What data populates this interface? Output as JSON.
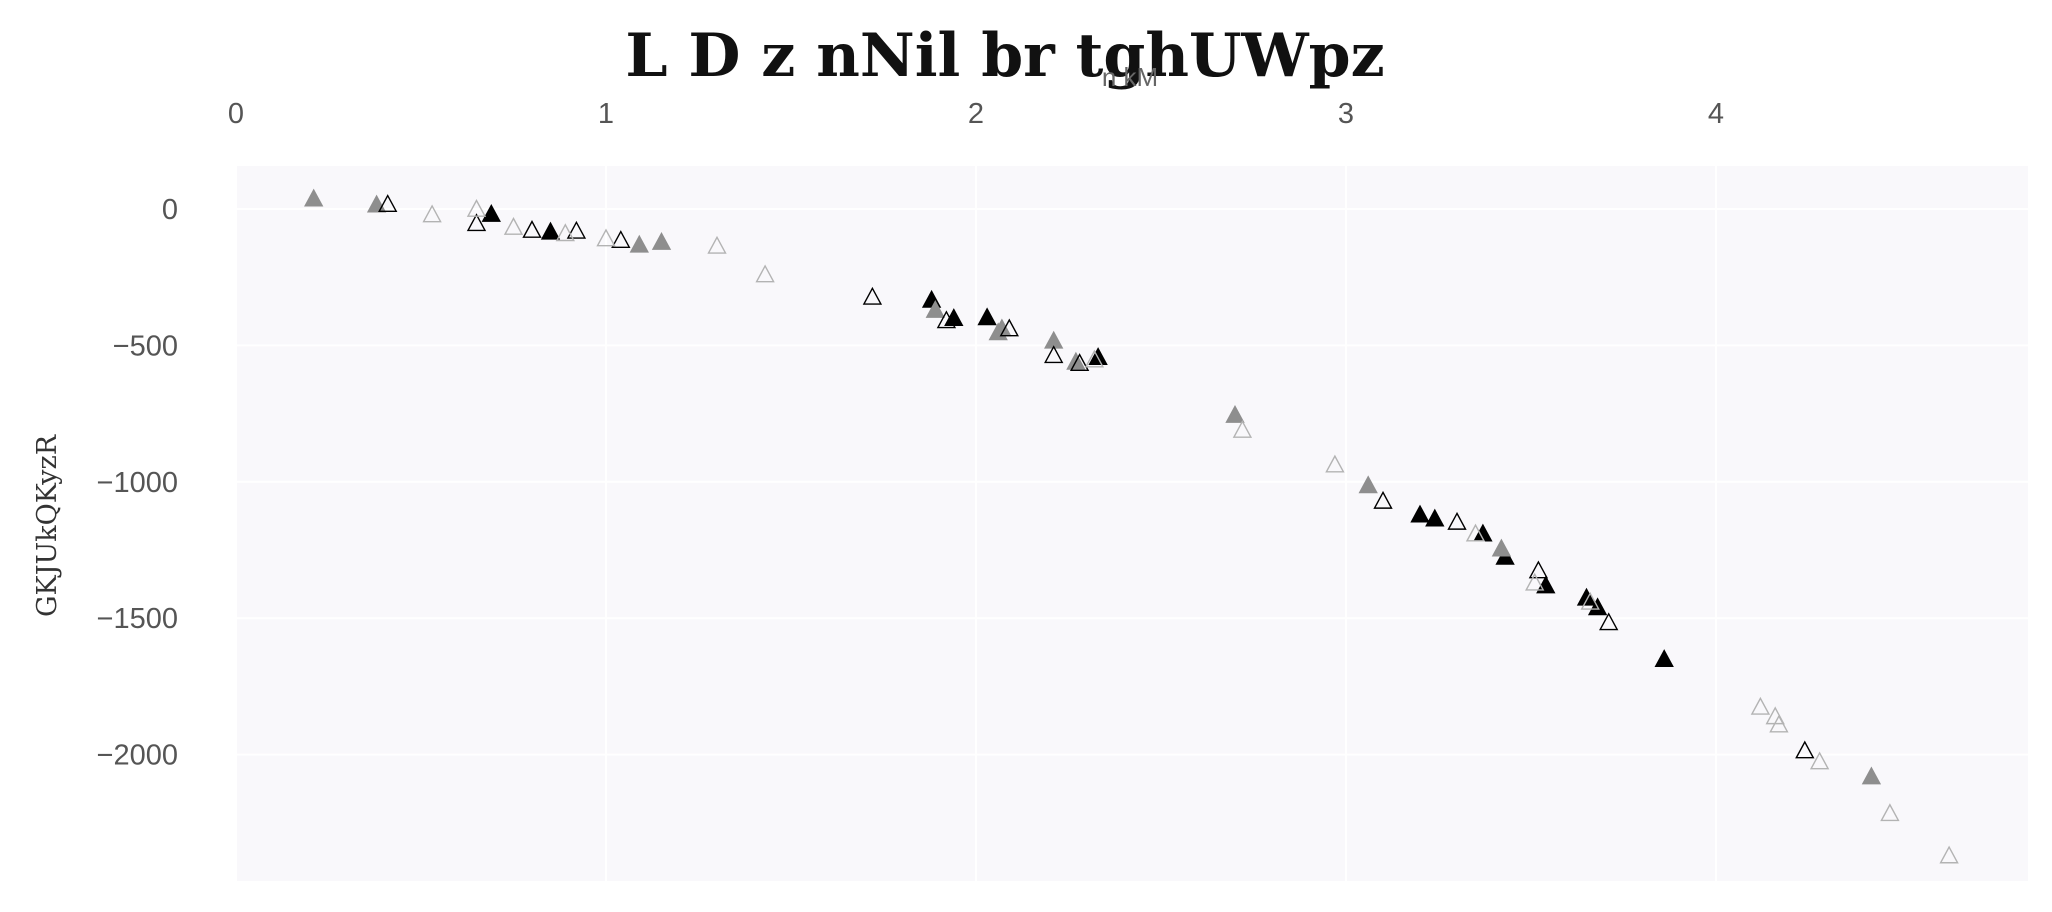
{
  "chart_data": {
    "type": "scatter",
    "title": "L D z nNil br tghUWpz",
    "xlabel": "n kM",
    "ylabel": "GKJUkQKyzR",
    "xaxis_position": "top",
    "xlim": [
      0,
      4.85
    ],
    "ylim": [
      -2460,
      160
    ],
    "xticks": [
      0,
      1,
      2,
      3,
      4
    ],
    "yticks": [
      0,
      -500,
      -1000,
      -1500,
      -2000
    ],
    "grid": true,
    "colors": {
      "plot_bg": "#f9f8fb",
      "black": "#000000",
      "gray": "#8e8e8e",
      "light": "#b3b3b3"
    },
    "series": [
      {
        "marker": "filled-triangle",
        "color": "#000000",
        "points": [
          [
            0.69,
            -18
          ],
          [
            0.85,
            -83
          ],
          [
            1.88,
            -333
          ],
          [
            1.94,
            -400
          ],
          [
            2.03,
            -397
          ],
          [
            2.33,
            -543
          ],
          [
            3.2,
            -1120
          ],
          [
            3.24,
            -1135
          ],
          [
            3.37,
            -1190
          ],
          [
            3.43,
            -1275
          ],
          [
            3.54,
            -1380
          ],
          [
            3.65,
            -1425
          ],
          [
            3.68,
            -1460
          ],
          [
            3.86,
            -1650
          ]
        ]
      },
      {
        "marker": "filled-triangle",
        "color": "#8e8e8e",
        "points": [
          [
            0.21,
            38
          ],
          [
            0.38,
            16
          ],
          [
            1.09,
            -131
          ],
          [
            1.15,
            -121
          ],
          [
            1.89,
            -370
          ],
          [
            2.06,
            -452
          ],
          [
            2.07,
            -438
          ],
          [
            2.21,
            -483
          ],
          [
            2.27,
            -560
          ],
          [
            2.7,
            -755
          ],
          [
            3.06,
            -1013
          ],
          [
            3.42,
            -1245
          ],
          [
            4.42,
            -2080
          ]
        ]
      },
      {
        "marker": "open-triangle",
        "color": "#000000",
        "points": [
          [
            0.41,
            18
          ],
          [
            0.65,
            -52
          ],
          [
            0.8,
            -77
          ],
          [
            0.92,
            -80
          ],
          [
            1.04,
            -114
          ],
          [
            1.72,
            -322
          ],
          [
            1.92,
            -408
          ],
          [
            2.09,
            -438
          ],
          [
            2.21,
            -536
          ],
          [
            2.28,
            -565
          ],
          [
            3.1,
            -1070
          ],
          [
            3.3,
            -1147
          ],
          [
            3.52,
            -1325
          ],
          [
            3.71,
            -1515
          ],
          [
            4.24,
            -1985
          ]
        ]
      },
      {
        "marker": "open-triangle",
        "color": "#b3b3b3",
        "points": [
          [
            0.53,
            -20
          ],
          [
            0.65,
            0
          ],
          [
            0.75,
            -66
          ],
          [
            0.89,
            -89
          ],
          [
            1.0,
            -108
          ],
          [
            1.3,
            -135
          ],
          [
            1.43,
            -240
          ],
          [
            2.32,
            -552
          ],
          [
            2.72,
            -810
          ],
          [
            2.97,
            -937
          ],
          [
            3.35,
            -1190
          ],
          [
            3.51,
            -1370
          ],
          [
            3.66,
            -1440
          ],
          [
            4.12,
            -1825
          ],
          [
            4.16,
            -1860
          ],
          [
            4.17,
            -1890
          ],
          [
            4.28,
            -2025
          ],
          [
            4.47,
            -2215
          ],
          [
            4.63,
            -2370
          ]
        ]
      }
    ]
  }
}
